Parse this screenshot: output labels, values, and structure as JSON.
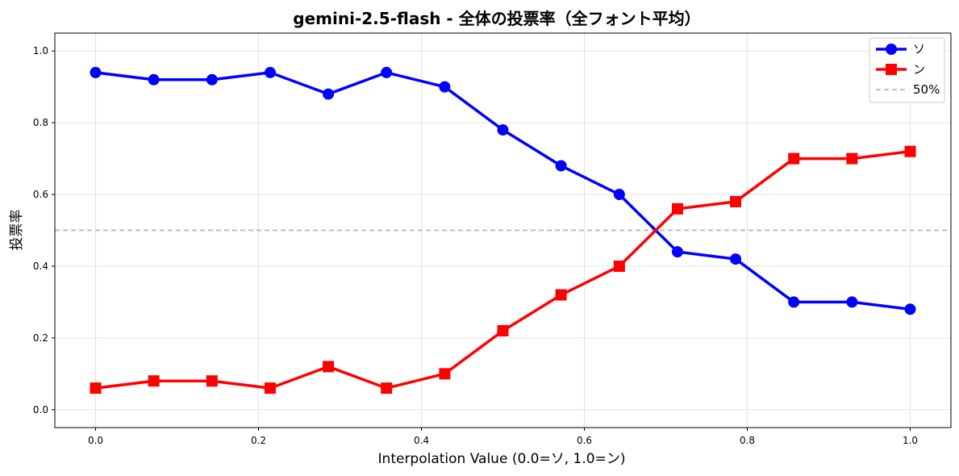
{
  "chart_data": {
    "type": "line",
    "title": "gemini-2.5-flash - 全体の投票率（全フォント平均）",
    "xlabel": "Interpolation Value (0.0=ソ, 1.0=ン)",
    "ylabel": "投票率",
    "xlim": [
      -0.05,
      1.05
    ],
    "ylim": [
      -0.05,
      1.05
    ],
    "x_ticks": [
      0.0,
      0.2,
      0.4,
      0.6,
      0.8,
      1.0
    ],
    "x_tick_labels": [
      "0.0",
      "0.2",
      "0.4",
      "0.6",
      "0.8",
      "1.0"
    ],
    "y_ticks": [
      0.0,
      0.2,
      0.4,
      0.6,
      0.8,
      1.0
    ],
    "y_tick_labels": [
      "0.0",
      "0.2",
      "0.4",
      "0.6",
      "0.8",
      "1.0"
    ],
    "grid": true,
    "legend_position": "top-right",
    "x": [
      0.0,
      0.0714,
      0.1429,
      0.2143,
      0.2857,
      0.3571,
      0.4286,
      0.5,
      0.5714,
      0.6429,
      0.7143,
      0.7857,
      0.8571,
      0.9286,
      1.0
    ],
    "series": [
      {
        "name": "ソ",
        "color": "#0000ff",
        "marker": "circle",
        "values": [
          0.94,
          0.92,
          0.92,
          0.94,
          0.88,
          0.94,
          0.9,
          0.78,
          0.68,
          0.6,
          0.44,
          0.42,
          0.3,
          0.3,
          0.28
        ]
      },
      {
        "name": "ン",
        "color": "#ff0000",
        "marker": "square",
        "values": [
          0.06,
          0.08,
          0.08,
          0.06,
          0.12,
          0.06,
          0.1,
          0.22,
          0.32,
          0.4,
          0.56,
          0.58,
          0.7,
          0.7,
          0.72
        ]
      }
    ],
    "reference_line": {
      "name": "50%",
      "y": 0.5,
      "color": "#aaaaaa",
      "style": "dashed"
    }
  }
}
